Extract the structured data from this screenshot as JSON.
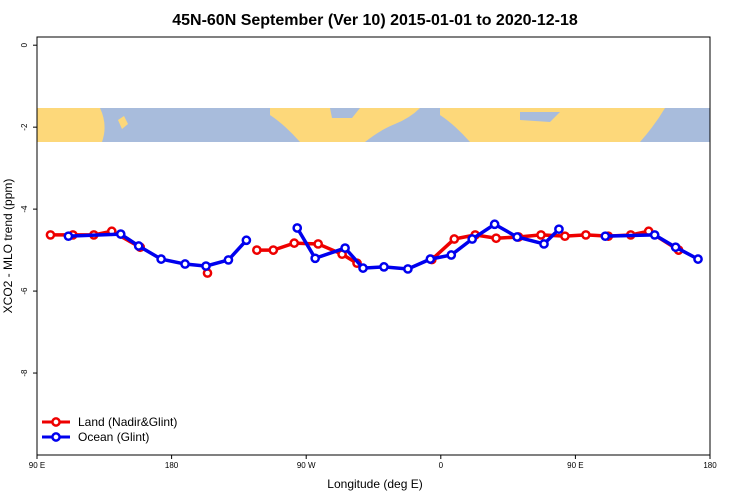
{
  "chart_data": {
    "type": "line",
    "title": "45N-60N September (Ver 10)   2015-01-01 to 2020-12-18",
    "xlabel": "Longitude (deg E)",
    "ylabel": "XCO2 - MLO trend (ppm)",
    "xlim": [
      90,
      540
    ],
    "ylim": [
      -10,
      0.2
    ],
    "xticks": [
      {
        "value": 90,
        "label": "90 E"
      },
      {
        "value": 180,
        "label": "180"
      },
      {
        "value": 270,
        "label": "90 W"
      },
      {
        "value": 360,
        "label": "0"
      },
      {
        "value": 450,
        "label": "90 E"
      },
      {
        "value": 540,
        "label": "180"
      }
    ],
    "yticks": [
      0,
      -2,
      -4,
      -6,
      -8
    ],
    "legend": "bottom-left",
    "series": [
      {
        "name": "Land (Nadir&Glint)",
        "color": "#ee0000",
        "x": [
          99,
          114,
          128,
          140,
          159,
          182,
          204,
          220,
          237,
          248,
          262,
          278,
          294,
          304,
          330,
          354,
          369,
          383,
          397,
          412,
          427,
          443,
          457,
          472,
          487,
          499,
          519
        ],
        "values": [
          -4.63,
          -4.63,
          -4.63,
          -4.54,
          -4.93,
          null,
          -5.56,
          null,
          -5.0,
          -5.0,
          -4.83,
          -4.85,
          -5.1,
          -5.32,
          null,
          -5.23,
          -4.73,
          -4.63,
          -4.71,
          -4.68,
          -4.63,
          -4.66,
          -4.63,
          -4.66,
          -4.63,
          -4.54,
          -5.0
        ]
      },
      {
        "name": "Ocean (Glint)",
        "color": "#0000ee",
        "x": [
          111,
          146,
          158,
          173,
          189,
          203,
          218,
          230,
          247,
          264,
          276,
          296,
          308,
          322,
          338,
          353,
          367,
          381,
          396,
          411,
          429,
          439,
          455,
          470,
          503,
          517,
          532
        ],
        "values": [
          -4.66,
          -4.61,
          -4.9,
          -5.22,
          -5.34,
          -5.39,
          -5.24,
          -4.76,
          null,
          -4.46,
          -5.2,
          -4.95,
          -5.44,
          -5.41,
          -5.46,
          -5.22,
          -5.12,
          -4.73,
          -4.37,
          -4.68,
          -4.85,
          -4.49,
          null,
          -4.66,
          -4.63,
          -4.93,
          -5.22
        ]
      }
    ]
  }
}
